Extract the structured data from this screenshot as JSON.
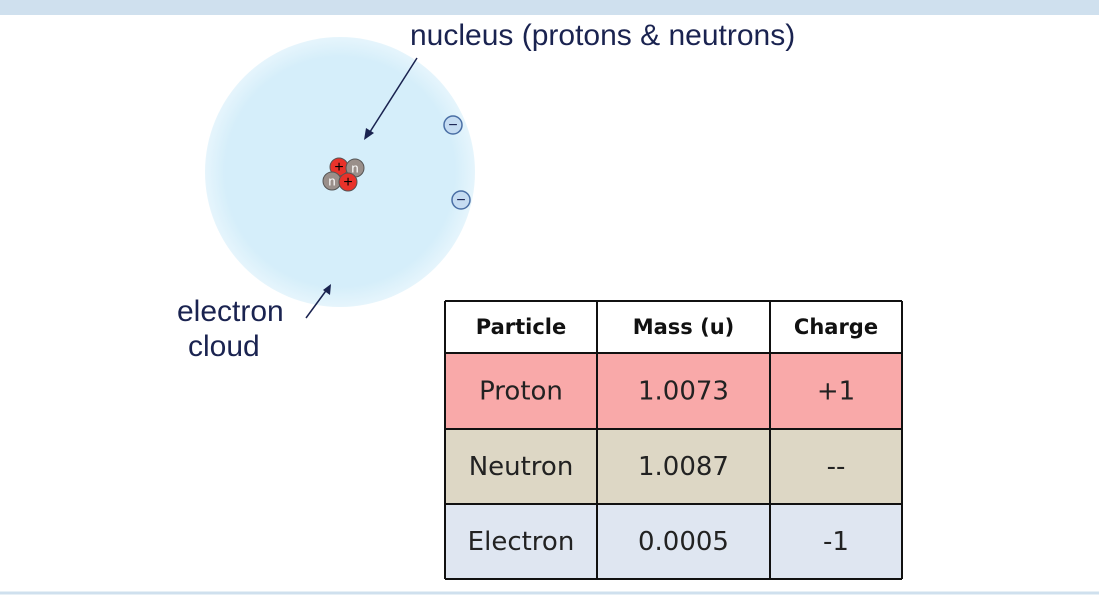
{
  "diagram": {
    "nucleus_label": "nucleus (protons & neutrons)",
    "cloud_label": [
      "electron",
      "cloud"
    ],
    "nucleus_particles": [
      "+",
      "n",
      "n",
      "+"
    ],
    "electrons": [
      "−",
      "−"
    ]
  },
  "table": {
    "header": [
      "Particle",
      "Mass (u)",
      "Charge"
    ],
    "rows": [
      [
        "Proton",
        "1.0073",
        "+1"
      ],
      [
        "Neutron",
        "1.0087",
        "--"
      ],
      [
        "Electron",
        "0.0005",
        "-1"
      ]
    ]
  }
}
